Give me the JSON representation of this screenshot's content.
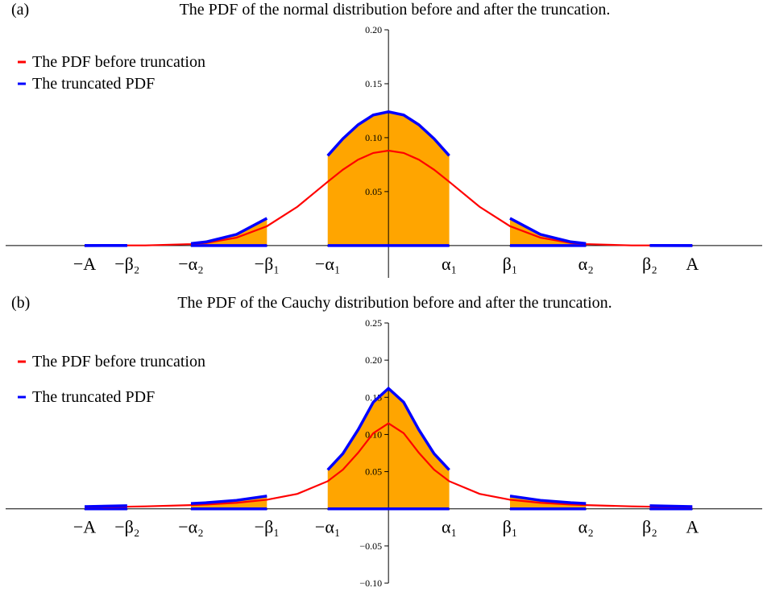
{
  "chart_data": [
    {
      "type": "line",
      "panel": "(a)",
      "title": "The PDF of the normal distribution before and after the truncation.",
      "x": [
        -5,
        -4.3,
        -4,
        -3.25,
        -3,
        -2.5,
        -2,
        -1.5,
        -1,
        -0.75,
        -0.5,
        -0.25,
        0,
        0.25,
        0.5,
        0.75,
        1,
        1.5,
        2,
        2.5,
        3,
        3.25,
        4,
        4.3,
        5
      ],
      "xlim": [
        -6.3,
        6.15
      ],
      "xticks": [
        {
          "value": -5,
          "label": "−A"
        },
        {
          "value": -4.3,
          "label": "−β₂"
        },
        {
          "value": -3.25,
          "label": "−α₂"
        },
        {
          "value": -2,
          "label": "−β₁"
        },
        {
          "value": -1,
          "label": "−α₁"
        },
        {
          "value": 1,
          "label": "α₁"
        },
        {
          "value": 2,
          "label": "β₁"
        },
        {
          "value": 3.25,
          "label": "α₂"
        },
        {
          "value": 4.3,
          "label": "β₂"
        },
        {
          "value": 5,
          "label": "A"
        }
      ],
      "ylim": [
        -0.03,
        0.2
      ],
      "yticks": [
        0.05,
        {
          "value": 0.1,
          "label": "0.10"
        },
        0.15,
        {
          "value": 0.2,
          "label": "0.20"
        }
      ],
      "legend": "upper left",
      "fill_color": "#ffa500",
      "series": [
        {
          "name": "The PDF before truncation",
          "color": "#ff0000",
          "values": [
            0,
            0.0001,
            0.0001,
            0.0013,
            0.0024,
            0.0073,
            0.0179,
            0.0359,
            0.0591,
            0.0703,
            0.0796,
            0.0858,
            0.088,
            0.0858,
            0.0796,
            0.0703,
            0.0591,
            0.0359,
            0.0179,
            0.0073,
            0.0024,
            0.0013,
            0.0001,
            0.0001,
            0
          ]
        },
        {
          "name": "The truncated PDF",
          "color": "#0000ff",
          "values": [
            0,
            0.0001,
            null,
            0.0018,
            0.0034,
            0.0103,
            0.0252,
            null,
            0.0833,
            0.099,
            0.112,
            0.121,
            0.124,
            0.121,
            0.112,
            0.099,
            0.0833,
            null,
            0.0252,
            0.0103,
            0.0034,
            0.0018,
            null,
            0.0001,
            0
          ]
        }
      ]
    },
    {
      "type": "line",
      "panel": "(b)",
      "title": "The PDF of the Cauchy distribution before and after the truncation.",
      "x": [
        -5,
        -4.3,
        -4,
        -3.25,
        -3,
        -2.5,
        -2,
        -1.5,
        -1,
        -0.75,
        -0.5,
        -0.25,
        0,
        0.25,
        0.5,
        0.75,
        1,
        1.5,
        2,
        2.5,
        3,
        3.25,
        4,
        4.3,
        5
      ],
      "xlim": [
        -6.3,
        6.15
      ],
      "xticks": [
        {
          "value": -5,
          "label": "−A"
        },
        {
          "value": -4.3,
          "label": "−β₂"
        },
        {
          "value": -3.25,
          "label": "−α₂"
        },
        {
          "value": -2,
          "label": "−β₁"
        },
        {
          "value": -1,
          "label": "−α₁"
        },
        {
          "value": 1,
          "label": "α₁"
        },
        {
          "value": 2,
          "label": "β₁"
        },
        {
          "value": 3.25,
          "label": "α₂"
        },
        {
          "value": 4.3,
          "label": "β₂"
        },
        {
          "value": 5,
          "label": "A"
        }
      ],
      "ylim": [
        -0.1,
        0.25
      ],
      "yticks": [
        {
          "value": -0.1,
          "label": "−0.10"
        },
        {
          "value": -0.05,
          "label": "−0.05"
        },
        0.05,
        {
          "value": 0.1,
          "label": "0.10"
        },
        0.15,
        {
          "value": 0.2,
          "label": "0.20"
        },
        0.25
      ],
      "legend": "upper left",
      "fill_color": "#ffa500",
      "series": [
        {
          "name": "The PDF before truncation",
          "color": "#ff0000",
          "values": [
            0.0021,
            0.0029,
            0.0033,
            0.005,
            0.0058,
            0.0081,
            0.0122,
            0.0201,
            0.0371,
            0.0527,
            0.0754,
            0.1017,
            0.115,
            0.1017,
            0.0754,
            0.0527,
            0.0371,
            0.0201,
            0.0122,
            0.0081,
            0.0058,
            0.005,
            0.0033,
            0.0029,
            0.0021
          ]
        },
        {
          "name": "The truncated PDF",
          "color": "#0000ff",
          "values": [
            0.003,
            0.0041,
            null,
            0.0071,
            0.0082,
            0.0114,
            0.0172,
            null,
            0.0523,
            0.0743,
            0.1063,
            0.1434,
            0.162,
            0.1434,
            0.1063,
            0.0743,
            0.0523,
            null,
            0.0172,
            0.0114,
            0.0082,
            0.0071,
            null,
            0.0041,
            0.003
          ]
        }
      ]
    }
  ]
}
